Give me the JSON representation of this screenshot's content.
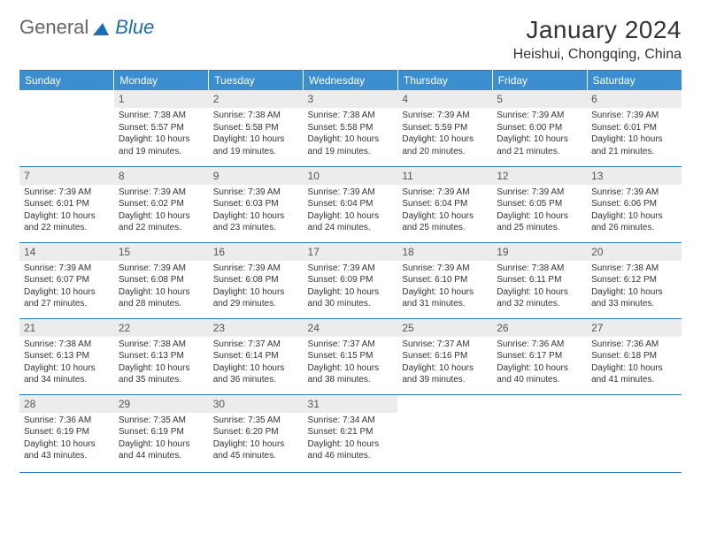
{
  "logo": {
    "text1": "General",
    "text2": "Blue",
    "triangle_color": "#1a6fb5"
  },
  "title": "January 2024",
  "location": "Heishui, Chongqing, China",
  "header_bg": "#3b8ed0",
  "border_color": "#2d7dc4",
  "daynum_bg": "#ececec",
  "weekdays": [
    "Sunday",
    "Monday",
    "Tuesday",
    "Wednesday",
    "Thursday",
    "Friday",
    "Saturday"
  ],
  "first_weekday": 1,
  "days": [
    {
      "n": 1,
      "sr": "7:38 AM",
      "ss": "5:57 PM",
      "dl": "10 hours and 19 minutes."
    },
    {
      "n": 2,
      "sr": "7:38 AM",
      "ss": "5:58 PM",
      "dl": "10 hours and 19 minutes."
    },
    {
      "n": 3,
      "sr": "7:38 AM",
      "ss": "5:58 PM",
      "dl": "10 hours and 19 minutes."
    },
    {
      "n": 4,
      "sr": "7:39 AM",
      "ss": "5:59 PM",
      "dl": "10 hours and 20 minutes."
    },
    {
      "n": 5,
      "sr": "7:39 AM",
      "ss": "6:00 PM",
      "dl": "10 hours and 21 minutes."
    },
    {
      "n": 6,
      "sr": "7:39 AM",
      "ss": "6:01 PM",
      "dl": "10 hours and 21 minutes."
    },
    {
      "n": 7,
      "sr": "7:39 AM",
      "ss": "6:01 PM",
      "dl": "10 hours and 22 minutes."
    },
    {
      "n": 8,
      "sr": "7:39 AM",
      "ss": "6:02 PM",
      "dl": "10 hours and 22 minutes."
    },
    {
      "n": 9,
      "sr": "7:39 AM",
      "ss": "6:03 PM",
      "dl": "10 hours and 23 minutes."
    },
    {
      "n": 10,
      "sr": "7:39 AM",
      "ss": "6:04 PM",
      "dl": "10 hours and 24 minutes."
    },
    {
      "n": 11,
      "sr": "7:39 AM",
      "ss": "6:04 PM",
      "dl": "10 hours and 25 minutes."
    },
    {
      "n": 12,
      "sr": "7:39 AM",
      "ss": "6:05 PM",
      "dl": "10 hours and 25 minutes."
    },
    {
      "n": 13,
      "sr": "7:39 AM",
      "ss": "6:06 PM",
      "dl": "10 hours and 26 minutes."
    },
    {
      "n": 14,
      "sr": "7:39 AM",
      "ss": "6:07 PM",
      "dl": "10 hours and 27 minutes."
    },
    {
      "n": 15,
      "sr": "7:39 AM",
      "ss": "6:08 PM",
      "dl": "10 hours and 28 minutes."
    },
    {
      "n": 16,
      "sr": "7:39 AM",
      "ss": "6:08 PM",
      "dl": "10 hours and 29 minutes."
    },
    {
      "n": 17,
      "sr": "7:39 AM",
      "ss": "6:09 PM",
      "dl": "10 hours and 30 minutes."
    },
    {
      "n": 18,
      "sr": "7:39 AM",
      "ss": "6:10 PM",
      "dl": "10 hours and 31 minutes."
    },
    {
      "n": 19,
      "sr": "7:38 AM",
      "ss": "6:11 PM",
      "dl": "10 hours and 32 minutes."
    },
    {
      "n": 20,
      "sr": "7:38 AM",
      "ss": "6:12 PM",
      "dl": "10 hours and 33 minutes."
    },
    {
      "n": 21,
      "sr": "7:38 AM",
      "ss": "6:13 PM",
      "dl": "10 hours and 34 minutes."
    },
    {
      "n": 22,
      "sr": "7:38 AM",
      "ss": "6:13 PM",
      "dl": "10 hours and 35 minutes."
    },
    {
      "n": 23,
      "sr": "7:37 AM",
      "ss": "6:14 PM",
      "dl": "10 hours and 36 minutes."
    },
    {
      "n": 24,
      "sr": "7:37 AM",
      "ss": "6:15 PM",
      "dl": "10 hours and 38 minutes."
    },
    {
      "n": 25,
      "sr": "7:37 AM",
      "ss": "6:16 PM",
      "dl": "10 hours and 39 minutes."
    },
    {
      "n": 26,
      "sr": "7:36 AM",
      "ss": "6:17 PM",
      "dl": "10 hours and 40 minutes."
    },
    {
      "n": 27,
      "sr": "7:36 AM",
      "ss": "6:18 PM",
      "dl": "10 hours and 41 minutes."
    },
    {
      "n": 28,
      "sr": "7:36 AM",
      "ss": "6:19 PM",
      "dl": "10 hours and 43 minutes."
    },
    {
      "n": 29,
      "sr": "7:35 AM",
      "ss": "6:19 PM",
      "dl": "10 hours and 44 minutes."
    },
    {
      "n": 30,
      "sr": "7:35 AM",
      "ss": "6:20 PM",
      "dl": "10 hours and 45 minutes."
    },
    {
      "n": 31,
      "sr": "7:34 AM",
      "ss": "6:21 PM",
      "dl": "10 hours and 46 minutes."
    }
  ],
  "labels": {
    "sunrise": "Sunrise:",
    "sunset": "Sunset:",
    "daylight": "Daylight:"
  }
}
